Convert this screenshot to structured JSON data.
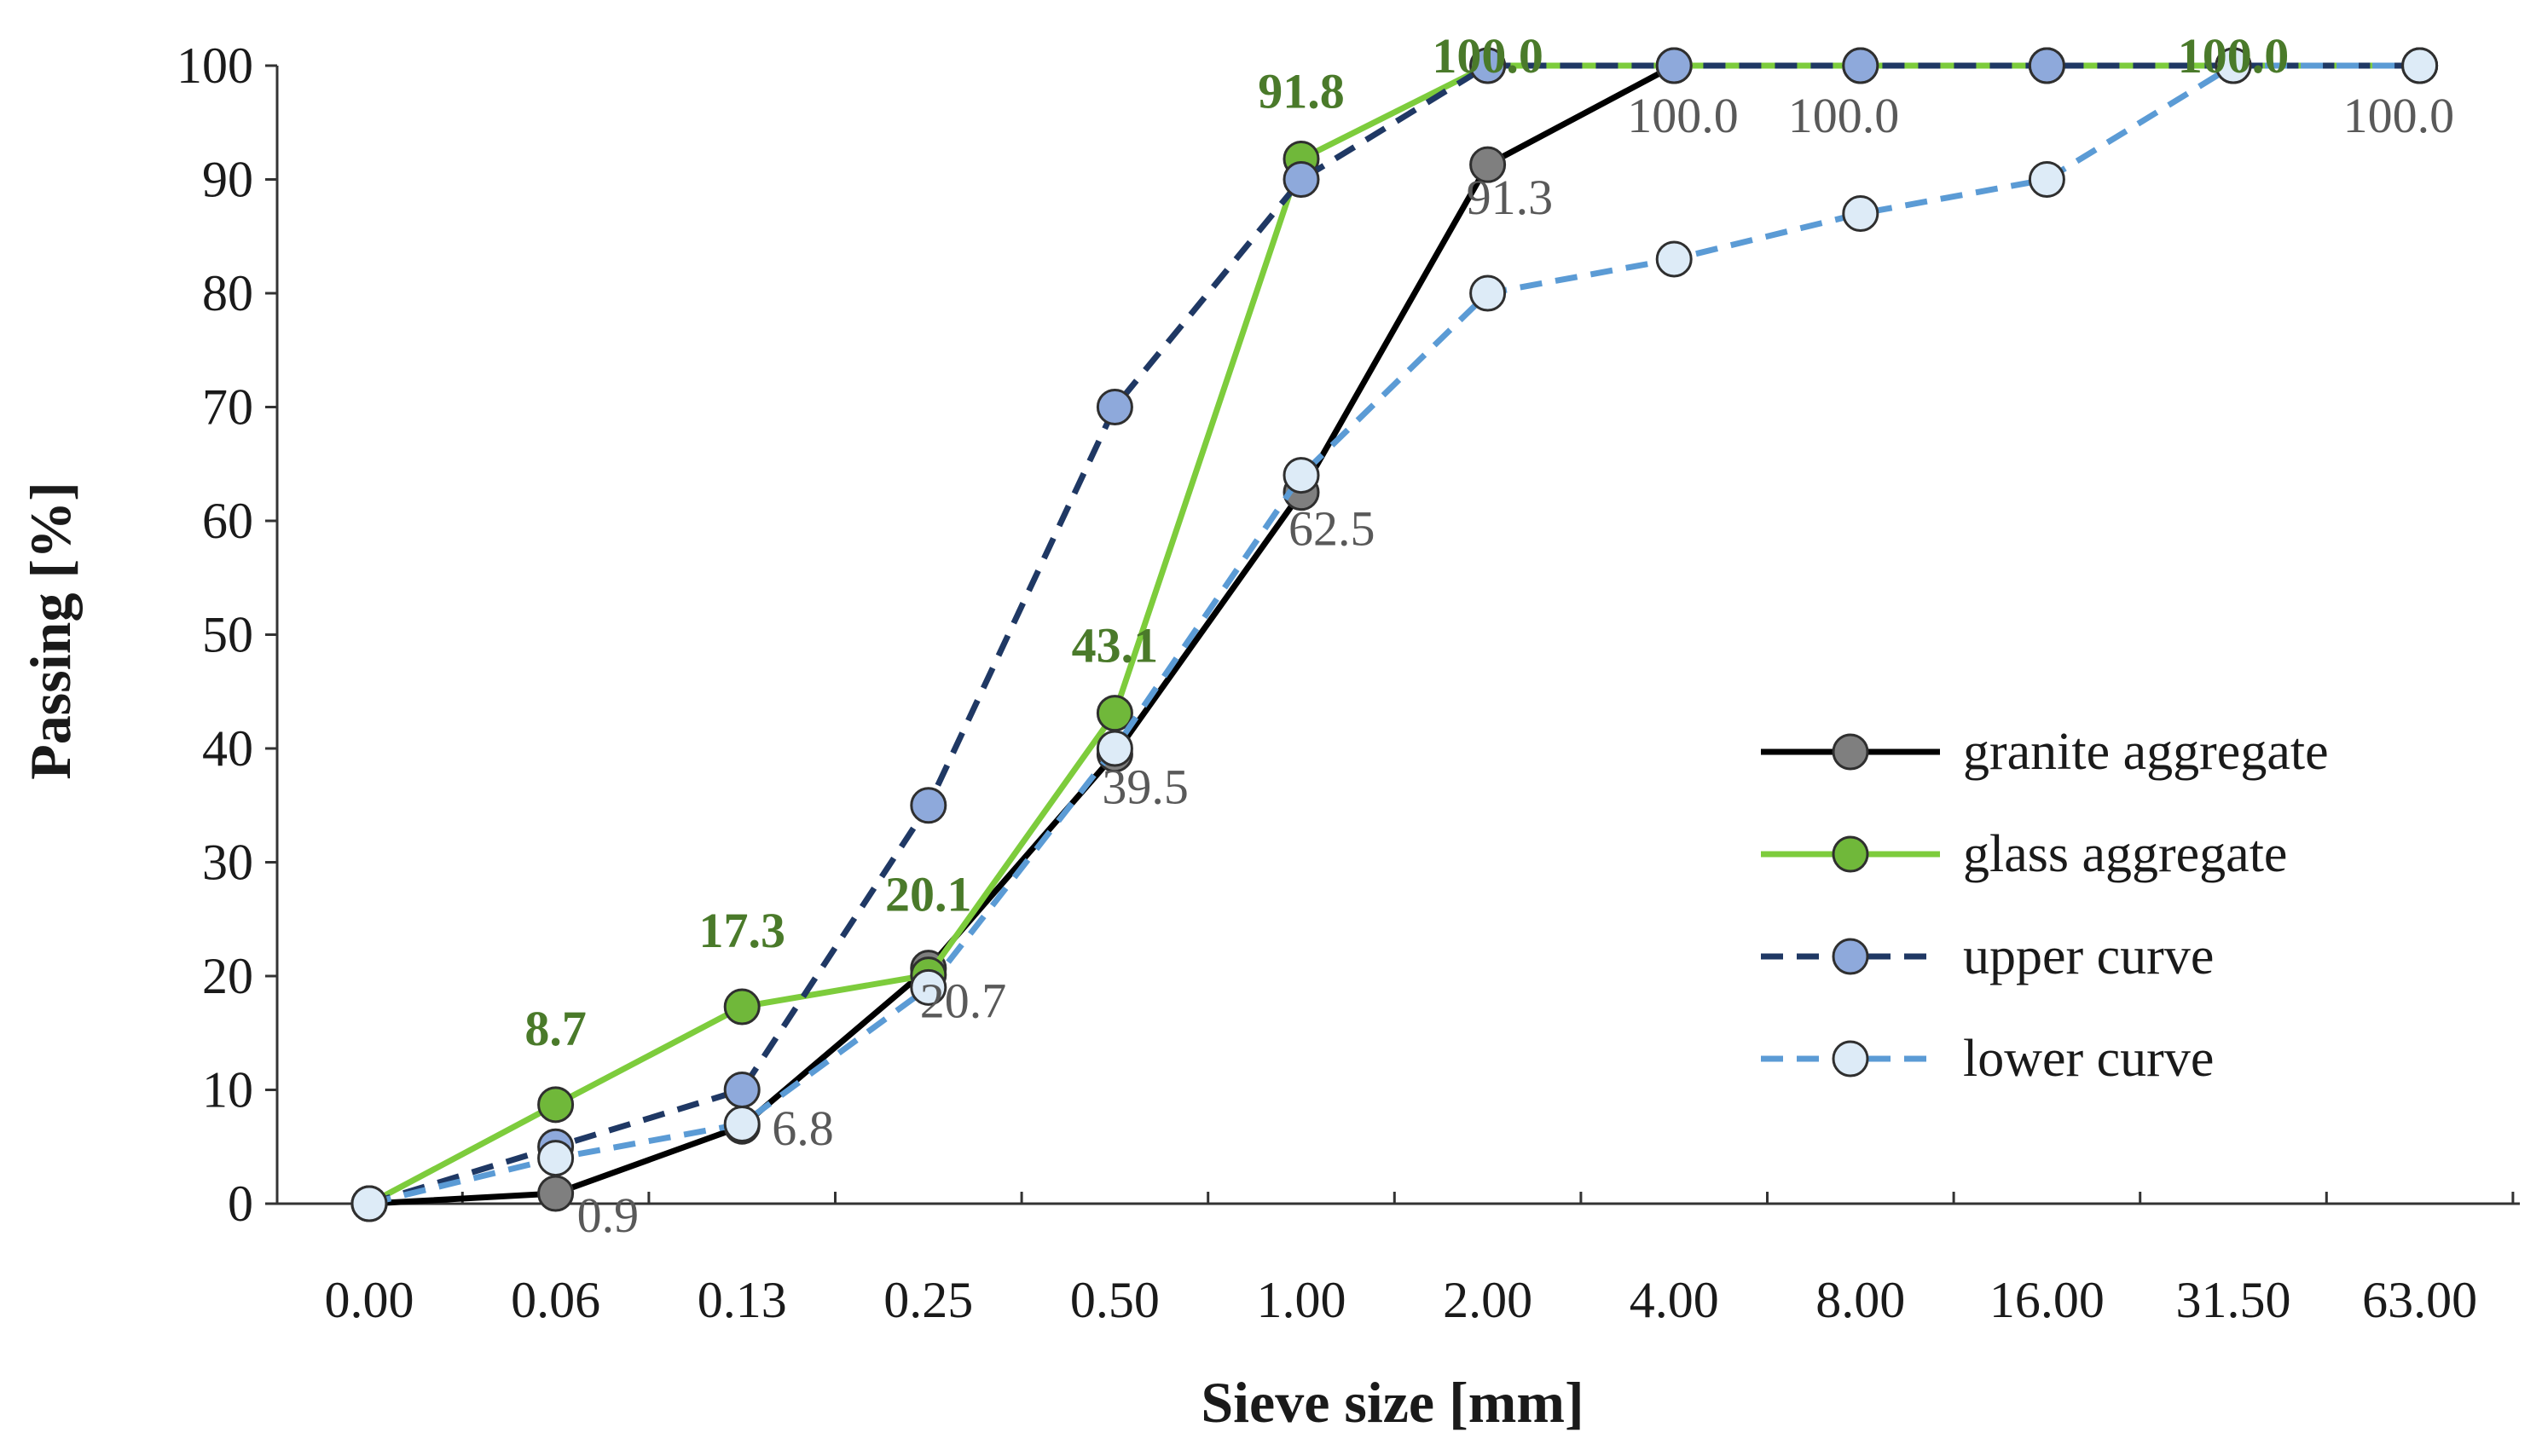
{
  "chart_data": {
    "type": "line",
    "title": "",
    "xlabel": "Sieve size [mm]",
    "ylabel": "Passing [%]",
    "categories": [
      "0.00",
      "0.06",
      "0.13",
      "0.25",
      "0.50",
      "1.00",
      "2.00",
      "4.00",
      "8.00",
      "16.00",
      "31.50",
      "63.00"
    ],
    "ylim": [
      0,
      100
    ],
    "yticks": [
      0,
      10,
      20,
      30,
      40,
      50,
      60,
      70,
      80,
      90,
      100
    ],
    "grid": false,
    "legend_position": "right",
    "series": [
      {
        "key": "granite",
        "name": "granite aggregate",
        "values": [
          0,
          0.9,
          6.8,
          20.7,
          39.5,
          62.5,
          91.3,
          100,
          100,
          100,
          100,
          100
        ],
        "line_color": "#000000",
        "marker_color": "#7f7f7f",
        "dashed": false,
        "labeled": true
      },
      {
        "key": "glass",
        "name": "glass aggregate",
        "values": [
          0,
          8.7,
          17.3,
          20.1,
          43.1,
          91.8,
          100,
          100,
          100,
          100,
          100,
          100
        ],
        "line_color": "#7dcc3c",
        "marker_color": "#70b83a",
        "dashed": false,
        "labeled": true
      },
      {
        "key": "upper",
        "name": "upper curve",
        "values": [
          0,
          5,
          10,
          35,
          70,
          90,
          100,
          100,
          100,
          100,
          100,
          100
        ],
        "line_color": "#1f3864",
        "marker_color": "#8ea9db",
        "dashed": true,
        "labeled": false
      },
      {
        "key": "lower",
        "name": "lower curve",
        "values": [
          0,
          4,
          7,
          19,
          40,
          64,
          80,
          83,
          87,
          90,
          100,
          100
        ],
        "line_color": "#5b9bd5",
        "marker_color": "#ddebf7",
        "dashed": true,
        "labeled": false
      }
    ],
    "data_labels": {
      "granite": [
        {
          "index": 1,
          "text": "0.9"
        },
        {
          "index": 2,
          "text": "6.8"
        },
        {
          "index": 3,
          "text": "20.7"
        },
        {
          "index": 4,
          "text": "39.5"
        },
        {
          "index": 5,
          "text": "62.5"
        },
        {
          "index": 6,
          "text": "91.3"
        },
        {
          "index": 7,
          "text": "100.0"
        },
        {
          "index": 8,
          "text": "100.0"
        },
        {
          "index": 11,
          "text": "100.0"
        }
      ],
      "glass": [
        {
          "index": 1,
          "text": "8.7"
        },
        {
          "index": 2,
          "text": "17.3"
        },
        {
          "index": 3,
          "text": "20.1"
        },
        {
          "index": 4,
          "text": "43.1"
        },
        {
          "index": 5,
          "text": "91.8"
        },
        {
          "index": 6,
          "text": "100.0"
        },
        {
          "index": 10,
          "text": "100.0"
        }
      ]
    }
  }
}
